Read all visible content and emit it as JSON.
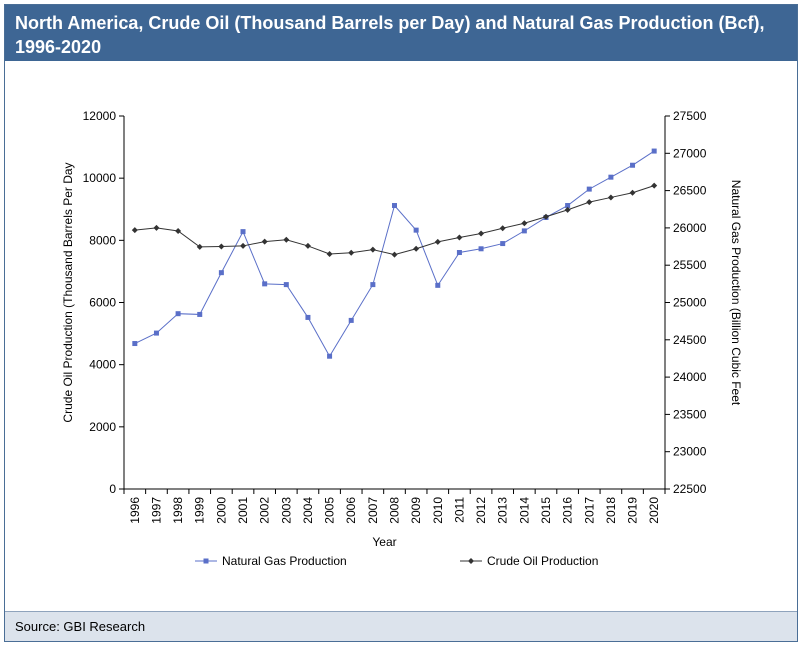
{
  "header": {
    "title": "North America, Crude Oil (Thousand Barrels per Day) and Natural Gas Production (Bcf), 1996-2020"
  },
  "footer": {
    "source": "Source: GBI Research"
  },
  "colors": {
    "header_bg": "#3e6694",
    "gas": "#5a6fc8",
    "oil": "#333333"
  },
  "chart_data": {
    "type": "line",
    "title": "",
    "xlabel": "Year",
    "ylabel": "Crude Oil Production (Thousand Barrels Per Day",
    "y2label": "Natural Gas Production (Billion Cubic Feet",
    "x": [
      "1996",
      "1997",
      "1998",
      "1999",
      "2000",
      "2001",
      "2002",
      "2003",
      "2004",
      "2005",
      "2006",
      "2007",
      "2008",
      "2009",
      "2010",
      "2011",
      "2012",
      "2013",
      "2014",
      "2015",
      "2016",
      "2017",
      "2018",
      "2019",
      "2020"
    ],
    "ylim": [
      0,
      12000
    ],
    "yticks": [
      0,
      2000,
      4000,
      6000,
      8000,
      10000,
      12000
    ],
    "y2lim": [
      22500,
      27500
    ],
    "y2ticks": [
      22500,
      23000,
      23500,
      24000,
      24500,
      25000,
      25500,
      26000,
      26500,
      27000,
      27500
    ],
    "legend": "bottom",
    "grid": false,
    "series": [
      {
        "name": "Natural Gas Production",
        "axis": "right",
        "marker": "square",
        "values": [
          24450,
          24590,
          24850,
          24840,
          25400,
          25950,
          25250,
          25240,
          24800,
          24280,
          24760,
          25240,
          26300,
          25970,
          25230,
          25670,
          25720,
          25790,
          25960,
          26140,
          26300,
          26520,
          26680,
          26840,
          27030
        ]
      },
      {
        "name": "Crude Oil Production",
        "axis": "left",
        "marker": "diamond",
        "values": [
          8330,
          8400,
          8300,
          7790,
          7800,
          7820,
          7960,
          8020,
          7820,
          7560,
          7600,
          7700,
          7540,
          7730,
          7950,
          8090,
          8220,
          8390,
          8550,
          8760,
          8980,
          9230,
          9380,
          9530,
          9760
        ]
      }
    ]
  }
}
